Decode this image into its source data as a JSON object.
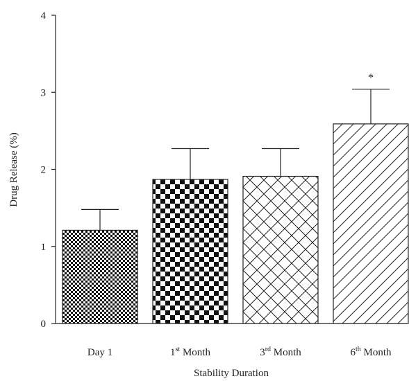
{
  "chart_data": {
    "type": "bar",
    "categories": [
      {
        "pre": "Day 1",
        "sup": "",
        "post": ""
      },
      {
        "pre": "1",
        "sup": "st",
        "post": " Month"
      },
      {
        "pre": "3",
        "sup": "rd",
        "post": " Month"
      },
      {
        "pre": "6",
        "sup": "th",
        "post": " Month"
      }
    ],
    "values": [
      1.21,
      1.87,
      1.91,
      2.59
    ],
    "errors": [
      0.27,
      0.4,
      0.36,
      0.45
    ],
    "patterns": [
      "fine-checker",
      "coarse-checker",
      "crosshatch",
      "diagonal"
    ],
    "annotations": [
      "",
      "",
      "",
      "*"
    ],
    "title": "",
    "xlabel": "Stability Duration",
    "ylabel": "Drug Release (%)",
    "ylim": [
      0,
      4
    ],
    "yticks": [
      "0",
      "1",
      "2",
      "3",
      "4"
    ],
    "grid": false,
    "legend": "none"
  }
}
